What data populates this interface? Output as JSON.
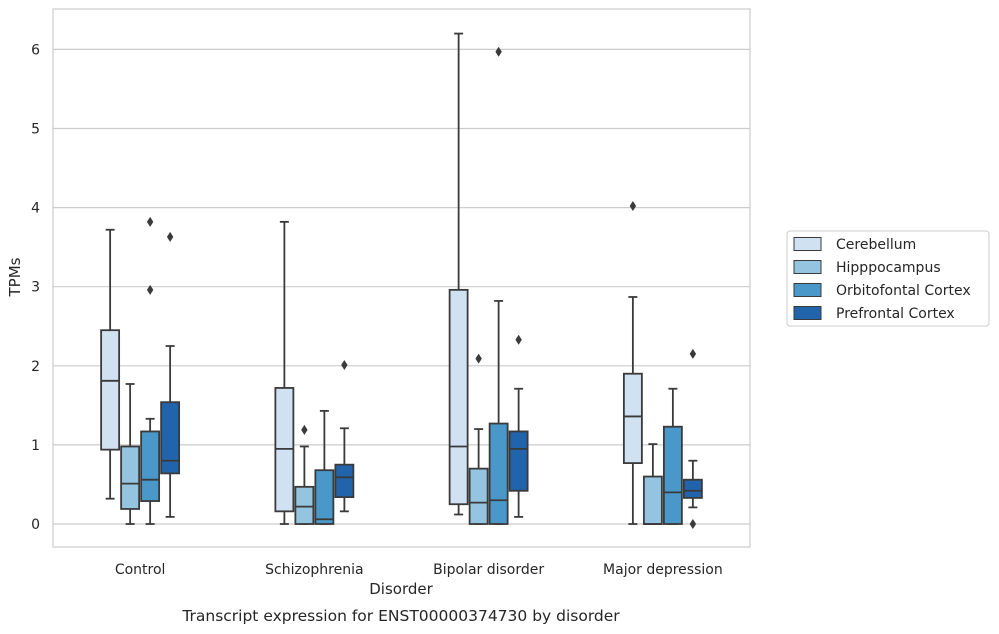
{
  "chart_data": {
    "type": "box",
    "xlabel": "Disorder",
    "ylabel": "TPMs",
    "caption": "Transcript expression for ENST00000374730 by disorder",
    "ylim": [
      -0.3,
      6.5
    ],
    "yticks": [
      "0",
      "1",
      "2",
      "3",
      "4",
      "5",
      "6"
    ],
    "grid": "horizontal",
    "legend_position": "right",
    "categories": [
      "Control",
      "Schizophrenia",
      "Bipolar disorder",
      "Major depression"
    ],
    "series": [
      {
        "name": "Cerebellum",
        "color": "#d0e1f2",
        "boxes": [
          {
            "whislo": 0.32,
            "q1": 0.94,
            "med": 1.81,
            "q3": 2.45,
            "whishi": 3.72,
            "fliers": []
          },
          {
            "whislo": 0.0,
            "q1": 0.16,
            "med": 0.95,
            "q3": 1.72,
            "whishi": 3.82,
            "fliers": []
          },
          {
            "whislo": 0.12,
            "q1": 0.25,
            "med": 0.98,
            "q3": 2.96,
            "whishi": 6.2,
            "fliers": []
          },
          {
            "whislo": 0.0,
            "q1": 0.77,
            "med": 1.36,
            "q3": 1.9,
            "whishi": 2.87,
            "fliers": [
              4.02
            ]
          }
        ]
      },
      {
        "name": "Hipppocampus",
        "color": "#94c4df",
        "boxes": [
          {
            "whislo": 0.0,
            "q1": 0.19,
            "med": 0.51,
            "q3": 0.98,
            "whishi": 1.77,
            "fliers": []
          },
          {
            "whislo": 0.0,
            "q1": 0.0,
            "med": 0.22,
            "q3": 0.47,
            "whishi": 0.98,
            "fliers": [
              1.19
            ]
          },
          {
            "whislo": 0.0,
            "q1": 0.0,
            "med": 0.27,
            "q3": 0.7,
            "whishi": 1.2,
            "fliers": [
              2.09
            ]
          },
          {
            "whislo": 0.0,
            "q1": 0.0,
            "med": 0.0,
            "q3": 0.6,
            "whishi": 1.01,
            "fliers": []
          }
        ]
      },
      {
        "name": "Orbitofontal Cortex",
        "color": "#4a98c9",
        "boxes": [
          {
            "whislo": 0.0,
            "q1": 0.29,
            "med": 0.56,
            "q3": 1.17,
            "whishi": 1.33,
            "fliers": [
              2.96,
              3.82
            ]
          },
          {
            "whislo": 0.0,
            "q1": 0.0,
            "med": 0.06,
            "q3": 0.68,
            "whishi": 1.43,
            "fliers": []
          },
          {
            "whislo": 0.0,
            "q1": 0.0,
            "med": 0.3,
            "q3": 1.27,
            "whishi": 2.82,
            "fliers": [
              5.97
            ]
          },
          {
            "whislo": 0.0,
            "q1": 0.0,
            "med": 0.4,
            "q3": 1.23,
            "whishi": 1.71,
            "fliers": []
          }
        ]
      },
      {
        "name": "Prefrontal Cortex",
        "color": "#2164ab",
        "boxes": [
          {
            "whislo": 0.09,
            "q1": 0.64,
            "med": 0.8,
            "q3": 1.54,
            "whishi": 2.25,
            "fliers": [
              3.63
            ]
          },
          {
            "whislo": 0.16,
            "q1": 0.34,
            "med": 0.59,
            "q3": 0.75,
            "whishi": 1.21,
            "fliers": [
              2.01
            ]
          },
          {
            "whislo": 0.09,
            "q1": 0.42,
            "med": 0.95,
            "q3": 1.17,
            "whishi": 1.71,
            "fliers": [
              2.33
            ]
          },
          {
            "whislo": 0.21,
            "q1": 0.33,
            "med": 0.42,
            "q3": 0.56,
            "whishi": 0.8,
            "fliers": [
              0.0,
              2.15
            ]
          }
        ]
      }
    ]
  }
}
